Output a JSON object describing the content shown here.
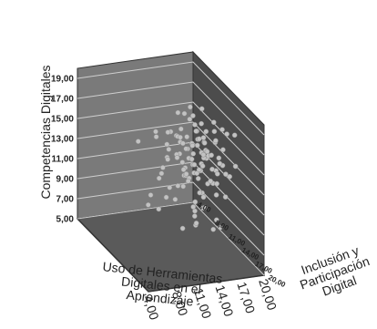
{
  "chart_data": {
    "type": "scatter",
    "projection": "3d",
    "title": "",
    "zlabel": "Competencias Digitales",
    "xlabel": [
      "Uso de Herramientas",
      "Digitales en el",
      "Aprendizaje"
    ],
    "ylabel": [
      "Inclusión y",
      "Participación",
      "Digital"
    ],
    "x_ticks": [
      "4,00",
      "8,00",
      "11,00",
      "14,00",
      "17,00",
      "20,00"
    ],
    "y_ticks": [
      "4,00",
      "8,00",
      "11,00",
      "14,00",
      "17,00",
      "20,00"
    ],
    "z_ticks": [
      "5,00",
      "7,00",
      "9,00",
      "11,00",
      "13,00",
      "15,00",
      "17,00",
      "19,00"
    ],
    "xlim": [
      4,
      20
    ],
    "ylim": [
      4,
      20
    ],
    "zlim": [
      5,
      20
    ],
    "grid": true,
    "colors": {
      "back_wall": "#7a7a7a",
      "side_wall": "#4c4c4c",
      "floor": "#5a5a5a",
      "point": "#c2c2c2",
      "grid": "#cfcfcf"
    },
    "points": [
      [
        13.0,
        12.0,
        18.3
      ],
      [
        14.0,
        13.0,
        18.0
      ],
      [
        15.0,
        14.0,
        17.9
      ],
      [
        16.0,
        12.5,
        18.6
      ],
      [
        13.5,
        15.0,
        18.4
      ],
      [
        14.5,
        11.0,
        17.6
      ],
      [
        15.5,
        16.0,
        18.9
      ],
      [
        12.5,
        13.5,
        17.4
      ],
      [
        16.5,
        14.5,
        17.2
      ],
      [
        14.2,
        12.8,
        19.1
      ],
      [
        13.0,
        14.0,
        16.8
      ],
      [
        14.0,
        15.0,
        16.9
      ],
      [
        15.0,
        13.0,
        16.7
      ],
      [
        16.0,
        15.5,
        16.6
      ],
      [
        12.0,
        12.0,
        16.5
      ],
      [
        14.5,
        14.0,
        16.4
      ],
      [
        15.5,
        12.0,
        16.2
      ],
      [
        13.5,
        16.5,
        16.3
      ],
      [
        17.0,
        14.0,
        16.0
      ],
      [
        12.5,
        15.0,
        16.1
      ],
      [
        14.0,
        13.5,
        15.8
      ],
      [
        15.0,
        15.0,
        15.7
      ],
      [
        13.0,
        12.5,
        15.6
      ],
      [
        16.0,
        13.0,
        15.5
      ],
      [
        14.5,
        16.0,
        15.4
      ],
      [
        15.5,
        14.5,
        15.3
      ],
      [
        12.0,
        14.0,
        15.2
      ],
      [
        13.5,
        13.0,
        15.1
      ],
      [
        16.5,
        15.5,
        15.0
      ],
      [
        14.0,
        11.5,
        14.9
      ],
      [
        15.0,
        12.0,
        14.8
      ],
      [
        13.0,
        15.5,
        14.7
      ],
      [
        16.0,
        14.0,
        14.6
      ],
      [
        14.5,
        13.0,
        14.5
      ],
      [
        12.5,
        12.5,
        14.4
      ],
      [
        15.5,
        16.5,
        14.3
      ],
      [
        13.5,
        14.5,
        14.2
      ],
      [
        17.0,
        13.0,
        14.1
      ],
      [
        14.0,
        15.5,
        14.0
      ],
      [
        15.0,
        14.0,
        13.9
      ],
      [
        13.0,
        13.0,
        13.8
      ],
      [
        16.0,
        16.0,
        13.7
      ],
      [
        14.5,
        12.0,
        13.6
      ],
      [
        12.0,
        15.0,
        13.5
      ],
      [
        15.5,
        13.5,
        13.4
      ],
      [
        13.5,
        11.0,
        13.3
      ],
      [
        16.5,
        14.0,
        13.2
      ],
      [
        14.0,
        14.0,
        13.1
      ],
      [
        15.0,
        16.0,
        13.0
      ],
      [
        13.0,
        14.5,
        12.9
      ],
      [
        14.0,
        12.0,
        12.7
      ],
      [
        15.0,
        13.0,
        12.5
      ],
      [
        16.0,
        15.0,
        12.3
      ],
      [
        13.5,
        13.5,
        12.1
      ],
      [
        12.5,
        14.0,
        11.9
      ],
      [
        15.5,
        12.5,
        11.7
      ],
      [
        14.5,
        15.0,
        11.5
      ],
      [
        16.5,
        13.0,
        11.3
      ],
      [
        13.0,
        12.0,
        11.0
      ],
      [
        15.0,
        14.5,
        10.8
      ],
      [
        14.0,
        16.0,
        10.5
      ],
      [
        12.0,
        13.0,
        10.2
      ],
      [
        16.0,
        12.0,
        10.0
      ],
      [
        13.5,
        15.0,
        9.8
      ],
      [
        15.5,
        14.0,
        9.5
      ],
      [
        14.5,
        13.0,
        9.2
      ],
      [
        13.0,
        16.0,
        8.9
      ],
      [
        16.5,
        15.0,
        8.6
      ],
      [
        14.0,
        14.5,
        8.3
      ],
      [
        15.0,
        12.5,
        8.0
      ],
      [
        11.0,
        13.0,
        17.0
      ],
      [
        10.5,
        14.0,
        15.8
      ],
      [
        11.5,
        12.0,
        14.0
      ],
      [
        10.0,
        15.0,
        12.5
      ],
      [
        11.0,
        11.0,
        11.5
      ],
      [
        9.5,
        14.0,
        13.5
      ],
      [
        10.0,
        12.0,
        16.2
      ],
      [
        18.0,
        14.0,
        15.0
      ],
      [
        18.5,
        13.0,
        16.5
      ],
      [
        18.0,
        15.5,
        13.0
      ],
      [
        17.5,
        12.0,
        11.0
      ],
      [
        18.5,
        16.0,
        14.2
      ],
      [
        9.0,
        13.5,
        17.5
      ],
      [
        8.5,
        15.0,
        10.5
      ],
      [
        19.0,
        13.0,
        12.0
      ],
      [
        17.5,
        11.0,
        15.5
      ],
      [
        11.0,
        17.0,
        14.5
      ],
      [
        12.0,
        17.5,
        12.0
      ],
      [
        13.5,
        17.0,
        16.0
      ],
      [
        15.0,
        17.5,
        13.5
      ],
      [
        16.0,
        10.5,
        17.0
      ],
      [
        14.0,
        10.0,
        15.0
      ],
      [
        12.5,
        10.5,
        13.0
      ],
      [
        15.0,
        10.0,
        11.5
      ],
      [
        13.0,
        9.5,
        14.0
      ],
      [
        16.5,
        17.0,
        11.8
      ],
      [
        17.0,
        16.5,
        17.8
      ],
      [
        10.5,
        16.0,
        18.0
      ],
      [
        19.0,
        15.0,
        16.8
      ],
      [
        9.5,
        11.0,
        9.0
      ],
      [
        7.5,
        12.0,
        16.0
      ],
      [
        8.0,
        14.0,
        11.5
      ],
      [
        12.0,
        11.0,
        9.5
      ],
      [
        18.0,
        12.5,
        9.8
      ],
      [
        14.5,
        17.5,
        9.0
      ],
      [
        17.0,
        15.0,
        7.8
      ],
      [
        11.5,
        15.5,
        8.5
      ],
      [
        13.0,
        18.0,
        18.0
      ],
      [
        15.5,
        18.0,
        15.5
      ],
      [
        10.0,
        13.5,
        13.8
      ],
      [
        12.5,
        16.5,
        15.2
      ],
      [
        16.0,
        11.5,
        14.5
      ],
      [
        14.8,
        14.8,
        15.2
      ],
      [
        13.8,
        13.8,
        14.4
      ],
      [
        15.2,
        13.2,
        16.0
      ],
      [
        12.8,
        14.2,
        13.2
      ],
      [
        16.2,
        16.2,
        14.8
      ],
      [
        14.2,
        15.8,
        17.4
      ],
      [
        15.8,
        12.2,
        12.4
      ],
      [
        13.2,
        12.2,
        15.9
      ]
    ]
  }
}
